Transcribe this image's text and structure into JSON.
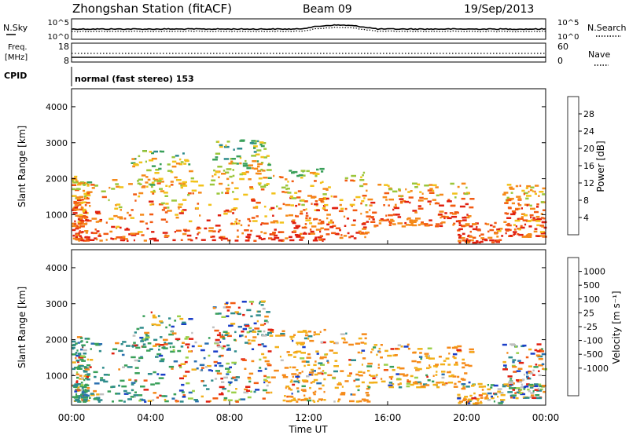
{
  "header": {
    "title": "Zhongshan Station (fitACF)",
    "beam": "Beam 09",
    "date": "19/Sep/2013"
  },
  "panels": {
    "nsky": {
      "label": "N.Sky",
      "left_ticks": [
        "10^5",
        "10^0"
      ],
      "right_ticks": [
        "10^5",
        "10^0"
      ],
      "right_label": "N.Search"
    },
    "freq": {
      "label_line1": "Freq.",
      "label_line2": "[MHz]",
      "left_ticks": [
        "18",
        "8"
      ],
      "right_ticks": [
        "60",
        "0"
      ],
      "right_label": "Nave"
    },
    "cpid": {
      "label": "CPID",
      "text": "normal (fast stereo) 153"
    }
  },
  "chart_data": [
    {
      "type": "heatmap",
      "title": "",
      "xlabel": "",
      "ylabel": "Slant Range [km]",
      "ylim": [
        180,
        4500
      ],
      "yticks": [
        1000,
        2000,
        3000,
        4000
      ],
      "xlim": [
        0,
        24
      ],
      "colorbar": {
        "label": "Power [dB]",
        "ticks": [
          "4",
          "8",
          "12",
          "16",
          "20",
          "24",
          "28"
        ],
        "colors": [
          "#0b22d6",
          "#1e55b8",
          "#2e8c8c",
          "#3aa05a",
          "#9bc63a",
          "#f2c21a",
          "#f58a1a",
          "#f25a12",
          "#e02010"
        ]
      },
      "scatter_regions": [
        {
          "t": [
            0.0,
            0.8
          ],
          "r": [
            300,
            2100
          ],
          "weight": 0.6
        },
        {
          "t": [
            0.8,
            5.8
          ],
          "r": [
            300,
            2000
          ],
          "weight": 0.65
        },
        {
          "t": [
            3.0,
            6.0
          ],
          "r": [
            1800,
            2800
          ],
          "weight": 0.3
        },
        {
          "t": [
            5.8,
            10.8
          ],
          "r": [
            300,
            2300
          ],
          "weight": 0.75
        },
        {
          "t": [
            7.0,
            10.0
          ],
          "r": [
            2000,
            3100
          ],
          "weight": 0.35
        },
        {
          "t": [
            10.8,
            12.8
          ],
          "r": [
            300,
            2300
          ],
          "weight": 0.6
        },
        {
          "t": [
            12.8,
            15.0
          ],
          "r": [
            300,
            2200
          ],
          "weight": 0.35
        },
        {
          "t": [
            15.0,
            20.2
          ],
          "r": [
            700,
            1900
          ],
          "weight": 0.75
        },
        {
          "t": [
            19.5,
            21.8
          ],
          "r": [
            250,
            800
          ],
          "weight": 0.3
        },
        {
          "t": [
            21.8,
            23.9
          ],
          "r": [
            400,
            1900
          ],
          "weight": 0.6
        }
      ]
    },
    {
      "type": "heatmap",
      "title": "",
      "xlabel": "Time UT",
      "ylabel": "Slant Range [km]",
      "ylim": [
        180,
        4500
      ],
      "yticks": [
        1000,
        2000,
        3000,
        4000
      ],
      "xlim": [
        0,
        24
      ],
      "xticks": [
        "00:00",
        "04:00",
        "08:00",
        "12:00",
        "16:00",
        "20:00",
        "00:00"
      ],
      "colorbar": {
        "label": "Velocity [m s⁻¹]",
        "ticks": [
          "1000",
          "500",
          "100",
          "25",
          "-25",
          "-100",
          "-500",
          "-1000"
        ],
        "colors": [
          "#1a3ec8",
          "#2a70b0",
          "#2e8c8c",
          "#3aa05a",
          "#9bd04a",
          "#c0c0c0",
          "#f2b01a",
          "#f58a1a",
          "#f25a12",
          "#e02010"
        ]
      },
      "scatter_regions": [
        {
          "t": [
            0.0,
            0.8
          ],
          "r": [
            300,
            2100
          ],
          "weight": 0.6
        },
        {
          "t": [
            0.8,
            5.8
          ],
          "r": [
            300,
            2000
          ],
          "weight": 0.65
        },
        {
          "t": [
            3.0,
            6.0
          ],
          "r": [
            1800,
            2800
          ],
          "weight": 0.3
        },
        {
          "t": [
            5.8,
            10.8
          ],
          "r": [
            300,
            2300
          ],
          "weight": 0.75
        },
        {
          "t": [
            7.0,
            10.0
          ],
          "r": [
            2000,
            3100
          ],
          "weight": 0.35
        },
        {
          "t": [
            10.8,
            12.8
          ],
          "r": [
            300,
            2300
          ],
          "weight": 0.6
        },
        {
          "t": [
            12.8,
            15.0
          ],
          "r": [
            300,
            2200
          ],
          "weight": 0.35
        },
        {
          "t": [
            15.0,
            20.2
          ],
          "r": [
            700,
            1900
          ],
          "weight": 0.75
        },
        {
          "t": [
            19.5,
            21.8
          ],
          "r": [
            250,
            800
          ],
          "weight": 0.3
        },
        {
          "t": [
            21.8,
            23.9
          ],
          "r": [
            400,
            1900
          ],
          "weight": 0.6
        }
      ]
    }
  ]
}
